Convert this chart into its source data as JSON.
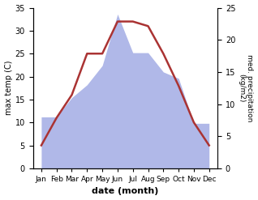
{
  "months": [
    "Jan",
    "Feb",
    "Mar",
    "Apr",
    "May",
    "Jun",
    "Jul",
    "Aug",
    "Sep",
    "Oct",
    "Nov",
    "Dec"
  ],
  "x_positions": [
    0,
    1,
    2,
    3,
    4,
    5,
    6,
    7,
    8,
    9,
    10,
    11
  ],
  "temperature": [
    5,
    11,
    16,
    25,
    25,
    32,
    32,
    31,
    25,
    18,
    10,
    5
  ],
  "precipitation": [
    8,
    8,
    11,
    13,
    16,
    24,
    18,
    18,
    15,
    14,
    7,
    7
  ],
  "temp_color": "#aa3333",
  "precip_color": "#b0b8e8",
  "xlabel": "date (month)",
  "ylabel_left": "max temp (C)",
  "ylabel_right": "med. precipitation\n(kg/m2)",
  "ylim_left": [
    0,
    35
  ],
  "ylim_right": [
    0,
    25
  ],
  "yticks_left": [
    0,
    5,
    10,
    15,
    20,
    25,
    30,
    35
  ],
  "yticks_right": [
    0,
    5,
    10,
    15,
    20,
    25
  ],
  "temp_linewidth": 1.8
}
